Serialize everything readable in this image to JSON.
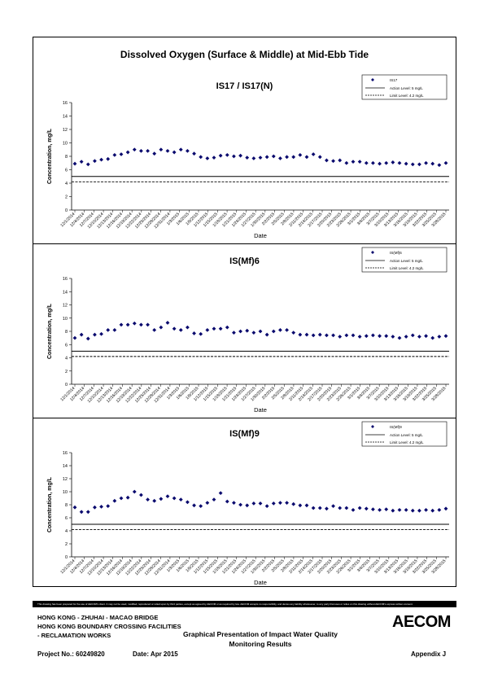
{
  "main_title": "Dissolved Oxygen (Surface & Middle) at Mid-Ebb Tide",
  "footer": {
    "line1": "HONG KONG - ZHUHAI - MACAO BRIDGE",
    "line2": "HONG KONG BOUNDARY CROSSING FACILITIES",
    "line3": "- RECLAMATION WORKS",
    "center1": "Graphical Presentation of Impact Water Quality",
    "center2": "Monitoring Results",
    "project": "Project No.: 60249820",
    "date": "Date: Apr 2015",
    "appendix": "Appendix J",
    "logo": "AECOM",
    "disclaimer": "This drawing has been prepared for the use of AECOM's client. It may not be used, modified, reproduced or relied upon by third parties, except as agreed by AECOM or as required by law. AECOM accepts no responsibility, and denies any liability whatsoever, to any party that uses or relies on this drawing without AECOM's express written consent."
  },
  "chart_data": [
    {
      "type": "scatter",
      "title": "IS17 / IS17(N)",
      "xlabel": "Date",
      "ylabel": "Concentration, mg/L",
      "ylim": [
        0,
        16
      ],
      "yticks": [
        0,
        2,
        4,
        6,
        8,
        10,
        12,
        14,
        16
      ],
      "xticks": [
        "12/1/2014",
        "12/4/2014",
        "12/7/2014",
        "12/10/2014",
        "12/13/2014",
        "12/16/2014",
        "12/19/2014",
        "12/22/2014",
        "12/25/2014",
        "12/28/2014",
        "12/31/2014",
        "1/3/2015",
        "1/6/2015",
        "1/9/2015",
        "1/12/2015",
        "1/15/2015",
        "1/18/2015",
        "1/21/2015",
        "1/24/2015",
        "1/27/2015",
        "1/30/2015",
        "2/2/2015",
        "2/5/2015",
        "2/8/2015",
        "2/11/2015",
        "2/14/2015",
        "2/17/2015",
        "2/20/2015",
        "2/23/2015",
        "2/26/2015",
        "3/1/2015",
        "3/4/2015",
        "3/7/2015",
        "3/10/2015",
        "3/13/2015",
        "3/16/2015",
        "3/19/2015",
        "3/22/2015",
        "3/25/2015",
        "3/28/2015"
      ],
      "legend": [
        "IS17",
        "Action Level: 5 mg/L",
        "Limit Level: 4.2 mg/L"
      ],
      "legend_position": "top-right",
      "action_level": 5,
      "limit_level": 4.2,
      "series": [
        {
          "name": "IS17",
          "values": [
            6.9,
            7.2,
            6.8,
            7.3,
            7.5,
            7.6,
            8.2,
            8.3,
            8.6,
            9.0,
            8.8,
            8.8,
            8.4,
            9.0,
            8.8,
            8.6,
            9.0,
            8.8,
            8.4,
            7.9,
            7.7,
            7.8,
            8.1,
            8.2,
            8.0,
            8.1,
            7.8,
            7.7,
            7.8,
            7.9,
            8.0,
            7.7,
            7.9,
            7.9,
            8.2,
            7.9,
            8.3,
            7.9,
            7.4,
            7.3,
            7.4,
            7.0,
            7.2,
            7.2,
            7.0,
            7.0,
            6.9,
            7.0,
            7.1,
            7.0,
            6.9,
            6.8,
            6.8,
            7.0,
            6.9,
            6.7,
            7.0
          ]
        }
      ]
    },
    {
      "type": "scatter",
      "title": "IS(Mf)6",
      "xlabel": "Date",
      "ylabel": "Concentration, mg/L",
      "ylim": [
        0,
        16
      ],
      "yticks": [
        0,
        2,
        4,
        6,
        8,
        10,
        12,
        14,
        16
      ],
      "xticks": [
        "12/1/2014",
        "12/4/2014",
        "12/7/2014",
        "12/10/2014",
        "12/13/2014",
        "12/16/2014",
        "12/19/2014",
        "12/22/2014",
        "12/25/2014",
        "12/28/2014",
        "12/31/2014",
        "1/3/2015",
        "1/6/2015",
        "1/9/2015",
        "1/12/2015",
        "1/15/2015",
        "1/18/2015",
        "1/21/2015",
        "1/24/2015",
        "1/27/2015",
        "1/30/2015",
        "2/2/2015",
        "2/5/2015",
        "2/8/2015",
        "2/11/2015",
        "2/14/2015",
        "2/17/2015",
        "2/20/2015",
        "2/23/2015",
        "2/26/2015",
        "3/1/2015",
        "3/4/2015",
        "3/7/2015",
        "3/10/2015",
        "3/13/2015",
        "3/16/2015",
        "3/19/2015",
        "3/22/2015",
        "3/25/2015",
        "3/28/2015"
      ],
      "legend": [
        "IS(Mf)6",
        "Action Level: 5 mg/L",
        "Limit Level: 4.2 mg/L"
      ],
      "legend_position": "top-right",
      "action_level": 5,
      "limit_level": 4.2,
      "series": [
        {
          "name": "IS(Mf)6",
          "values": [
            7.0,
            7.5,
            6.9,
            7.5,
            7.6,
            8.2,
            8.2,
            9.0,
            9.0,
            9.2,
            9.0,
            9.0,
            8.2,
            8.6,
            9.3,
            8.4,
            8.2,
            8.6,
            7.7,
            7.6,
            8.2,
            8.4,
            8.4,
            8.6,
            7.8,
            8.0,
            8.1,
            7.8,
            8.0,
            7.5,
            8.0,
            8.2,
            8.2,
            7.8,
            7.5,
            7.5,
            7.4,
            7.5,
            7.4,
            7.4,
            7.2,
            7.4,
            7.4,
            7.2,
            7.3,
            7.4,
            7.3,
            7.3,
            7.2,
            7.0,
            7.2,
            7.4,
            7.2,
            7.3,
            7.0,
            7.2,
            7.3
          ]
        }
      ]
    },
    {
      "type": "scatter",
      "title": "IS(Mf)9",
      "xlabel": "Date",
      "ylabel": "Concentration, mg/L",
      "ylim": [
        0,
        16
      ],
      "yticks": [
        0,
        2,
        4,
        6,
        8,
        10,
        12,
        14,
        16
      ],
      "xticks": [
        "12/1/2014",
        "12/4/2014",
        "12/7/2014",
        "12/10/2014",
        "12/13/2014",
        "12/16/2014",
        "12/19/2014",
        "12/22/2014",
        "12/25/2014",
        "12/28/2014",
        "12/31/2014",
        "1/3/2015",
        "1/6/2015",
        "1/9/2015",
        "1/12/2015",
        "1/15/2015",
        "1/18/2015",
        "1/21/2015",
        "1/24/2015",
        "1/27/2015",
        "1/30/2015",
        "2/2/2015",
        "2/5/2015",
        "2/8/2015",
        "2/11/2015",
        "2/14/2015",
        "2/17/2015",
        "2/20/2015",
        "2/23/2015",
        "2/26/2015",
        "3/1/2015",
        "3/4/2015",
        "3/7/2015",
        "3/10/2015",
        "3/13/2015",
        "3/16/2015",
        "3/19/2015",
        "3/22/2015",
        "3/25/2015",
        "3/28/2015"
      ],
      "legend": [
        "IS(Mf)9",
        "Action Level: 5 mg/L",
        "Limit Level: 4.2 mg/L"
      ],
      "legend_position": "top-right",
      "action_level": 5,
      "limit_level": 4.2,
      "series": [
        {
          "name": "IS(Mf)9",
          "values": [
            7.6,
            6.9,
            6.9,
            7.6,
            7.7,
            7.8,
            8.6,
            9.0,
            9.1,
            10.0,
            9.5,
            8.8,
            8.6,
            8.9,
            9.3,
            9.0,
            8.8,
            8.4,
            7.9,
            7.8,
            8.3,
            8.8,
            9.8,
            8.5,
            8.3,
            8.0,
            7.9,
            8.2,
            8.2,
            7.8,
            8.2,
            8.3,
            8.3,
            8.1,
            7.9,
            7.9,
            7.5,
            7.5,
            7.4,
            7.8,
            7.5,
            7.5,
            7.2,
            7.5,
            7.4,
            7.3,
            7.2,
            7.3,
            7.1,
            7.2,
            7.2,
            7.1,
            7.1,
            7.2,
            7.1,
            7.2,
            7.4
          ]
        }
      ]
    }
  ]
}
